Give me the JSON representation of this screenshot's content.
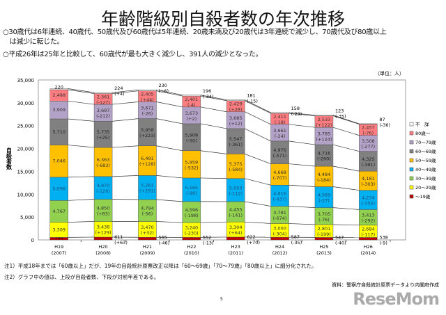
{
  "title": "年齢階級別自殺者数の年次推移",
  "bullets": [
    "○30歳代は6年連続、40歳代、50歳代及び60歳代は5年連続、20歳未満及び20歳代は3年連続で減少し、70歳代及び80歳以上",
    "　は減少に転じた。",
    "○平成26年は25年と比較して、60歳代が最も大きく減少し、391人の減少となった。"
  ],
  "unit": "（単位：人）",
  "notes": [
    "注1）平成18年までは「60歳以上」だが、19年の自殺統計原票改正以降は「60～69歳」「70～79歳」「80歳以上」に細分化された。",
    "注2）グラフ中の値は、上段が自殺者数、下段が対前年差である。"
  ],
  "source": "資料：警察庁自殺統計原票データより内閣府作成",
  "page_number": "5",
  "logo": "ReseMom",
  "chart_data": {
    "type": "bar",
    "stacked": true,
    "ylabel": "自殺者数",
    "ylim": [
      0,
      35000
    ],
    "yticks": [
      "0",
      "5,000",
      "10,000",
      "15,000",
      "20,000",
      "25,000",
      "30,000",
      "35,000"
    ],
    "categories": [
      [
        "H19",
        "(2007)"
      ],
      [
        "H20",
        "(2008)"
      ],
      [
        "H21",
        "(2009)"
      ],
      [
        "H22",
        "(2010)"
      ],
      [
        "H23",
        "(2011)"
      ],
      [
        "H24",
        "(2012)"
      ],
      [
        "H25",
        "(2013)"
      ],
      [
        "H26",
        "(2014)"
      ]
    ],
    "legend_position": "right",
    "series": [
      {
        "name": "～19歳",
        "color": "#c00000",
        "values": [
          548,
          611,
          565,
          552,
          622,
          587,
          547,
          538
        ],
        "diffs": [
          null,
          "+63",
          "-46",
          "-13",
          "+70",
          "-35",
          "-40",
          "-9"
        ]
      },
      {
        "name": "20～29歳",
        "color": "#ffff00",
        "values": [
          3309,
          3438,
          3470,
          3240,
          3304,
          3000,
          2801,
          2684
        ],
        "diffs": [
          null,
          "+129",
          "+32",
          "-230",
          "+64",
          "-304",
          "-199",
          "-117"
        ]
      },
      {
        "name": "30～39歳",
        "color": "#92d050",
        "values": [
          4767,
          4850,
          4794,
          4596,
          4455,
          3781,
          3705,
          3413
        ],
        "diffs": [
          null,
          "+83",
          "-56",
          "-198",
          "-141",
          "-674",
          "-76",
          "-292"
        ]
      },
      {
        "name": "40～49歳",
        "color": "#00b0f0",
        "values": [
          5096,
          4970,
          5261,
          5165,
          5053,
          4616,
          4589,
          4234
        ],
        "diffs": [
          null,
          "-126",
          "+291",
          "-96",
          "-112",
          "-437",
          "-27",
          "-355"
        ]
      },
      {
        "name": "50～59歳",
        "color": "#ffc000",
        "values": [
          7046,
          6363,
          6491,
          5959,
          5375,
          4668,
          4484,
          4181
        ],
        "diffs": [
          null,
          "-683",
          "+128",
          "-532",
          "-584",
          "-707",
          "-184",
          "-303"
        ]
      },
      {
        "name": "60～69歳",
        "color": "#808080",
        "values": [
          5710,
          5735,
          5958,
          5908,
          5547,
          4976,
          4716,
          4325
        ],
        "diffs": [
          null,
          "+25",
          "+223",
          "-50",
          "-361",
          "-571",
          "-260",
          "-391"
        ]
      },
      {
        "name": "70～79歳",
        "color": "#b3a2c7",
        "values": [
          3909,
          3697,
          3671,
          3673,
          3685,
          3661,
          3785,
          3508
        ],
        "diffs": [
          null,
          "-212",
          "-26",
          "+2",
          "+12",
          "-24",
          "+124",
          "-277"
        ]
      },
      {
        "name": "80歳～",
        "color": "#ff7c80",
        "values": [
          2488,
          2361,
          2405,
          2401,
          2429,
          2411,
          2533,
          2457
        ],
        "diffs": [
          null,
          "-127",
          "+44",
          "-4",
          "+28",
          "-18",
          "+122",
          "-76"
        ]
      },
      {
        "name": "不　詳",
        "color": "#ffffff",
        "values": [
          220,
          224,
          230,
          196,
          181,
          158,
          123,
          87
        ],
        "diffs": [
          null,
          "+4",
          "+6",
          "-34",
          "-15",
          "-23",
          "-35",
          "-36"
        ]
      }
    ]
  }
}
